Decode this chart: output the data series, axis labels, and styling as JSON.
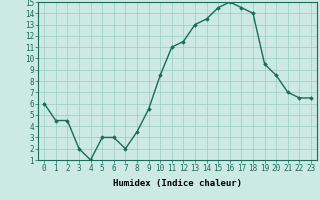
{
  "x": [
    0,
    1,
    2,
    3,
    4,
    5,
    6,
    7,
    8,
    9,
    10,
    11,
    12,
    13,
    14,
    15,
    16,
    17,
    18,
    19,
    20,
    21,
    22,
    23
  ],
  "y": [
    6.0,
    4.5,
    4.5,
    2.0,
    1.0,
    3.0,
    3.0,
    2.0,
    3.5,
    5.5,
    8.5,
    11.0,
    11.5,
    13.0,
    13.5,
    14.5,
    15.0,
    14.5,
    14.0,
    9.5,
    8.5,
    7.0,
    6.5,
    6.5
  ],
  "line_color": "#1a6b5a",
  "marker": "D",
  "markersize": 1.8,
  "linewidth": 1.0,
  "xlim": [
    -0.5,
    23.5
  ],
  "ylim": [
    1,
    15
  ],
  "yticks": [
    1,
    2,
    3,
    4,
    5,
    6,
    7,
    8,
    9,
    10,
    11,
    12,
    13,
    14,
    15
  ],
  "xtick_labels": [
    "0",
    "1",
    "2",
    "3",
    "4",
    "5",
    "6",
    "7",
    "8",
    "9",
    "10",
    "11",
    "12",
    "13",
    "14",
    "15",
    "16",
    "17",
    "18",
    "19",
    "20",
    "21",
    "22",
    "23"
  ],
  "xlabel": "Humidex (Indice chaleur)",
  "background_color": "#cce9e4",
  "grid_color": "#99ccc4",
  "tick_fontsize": 5.5,
  "xlabel_fontsize": 6.5
}
